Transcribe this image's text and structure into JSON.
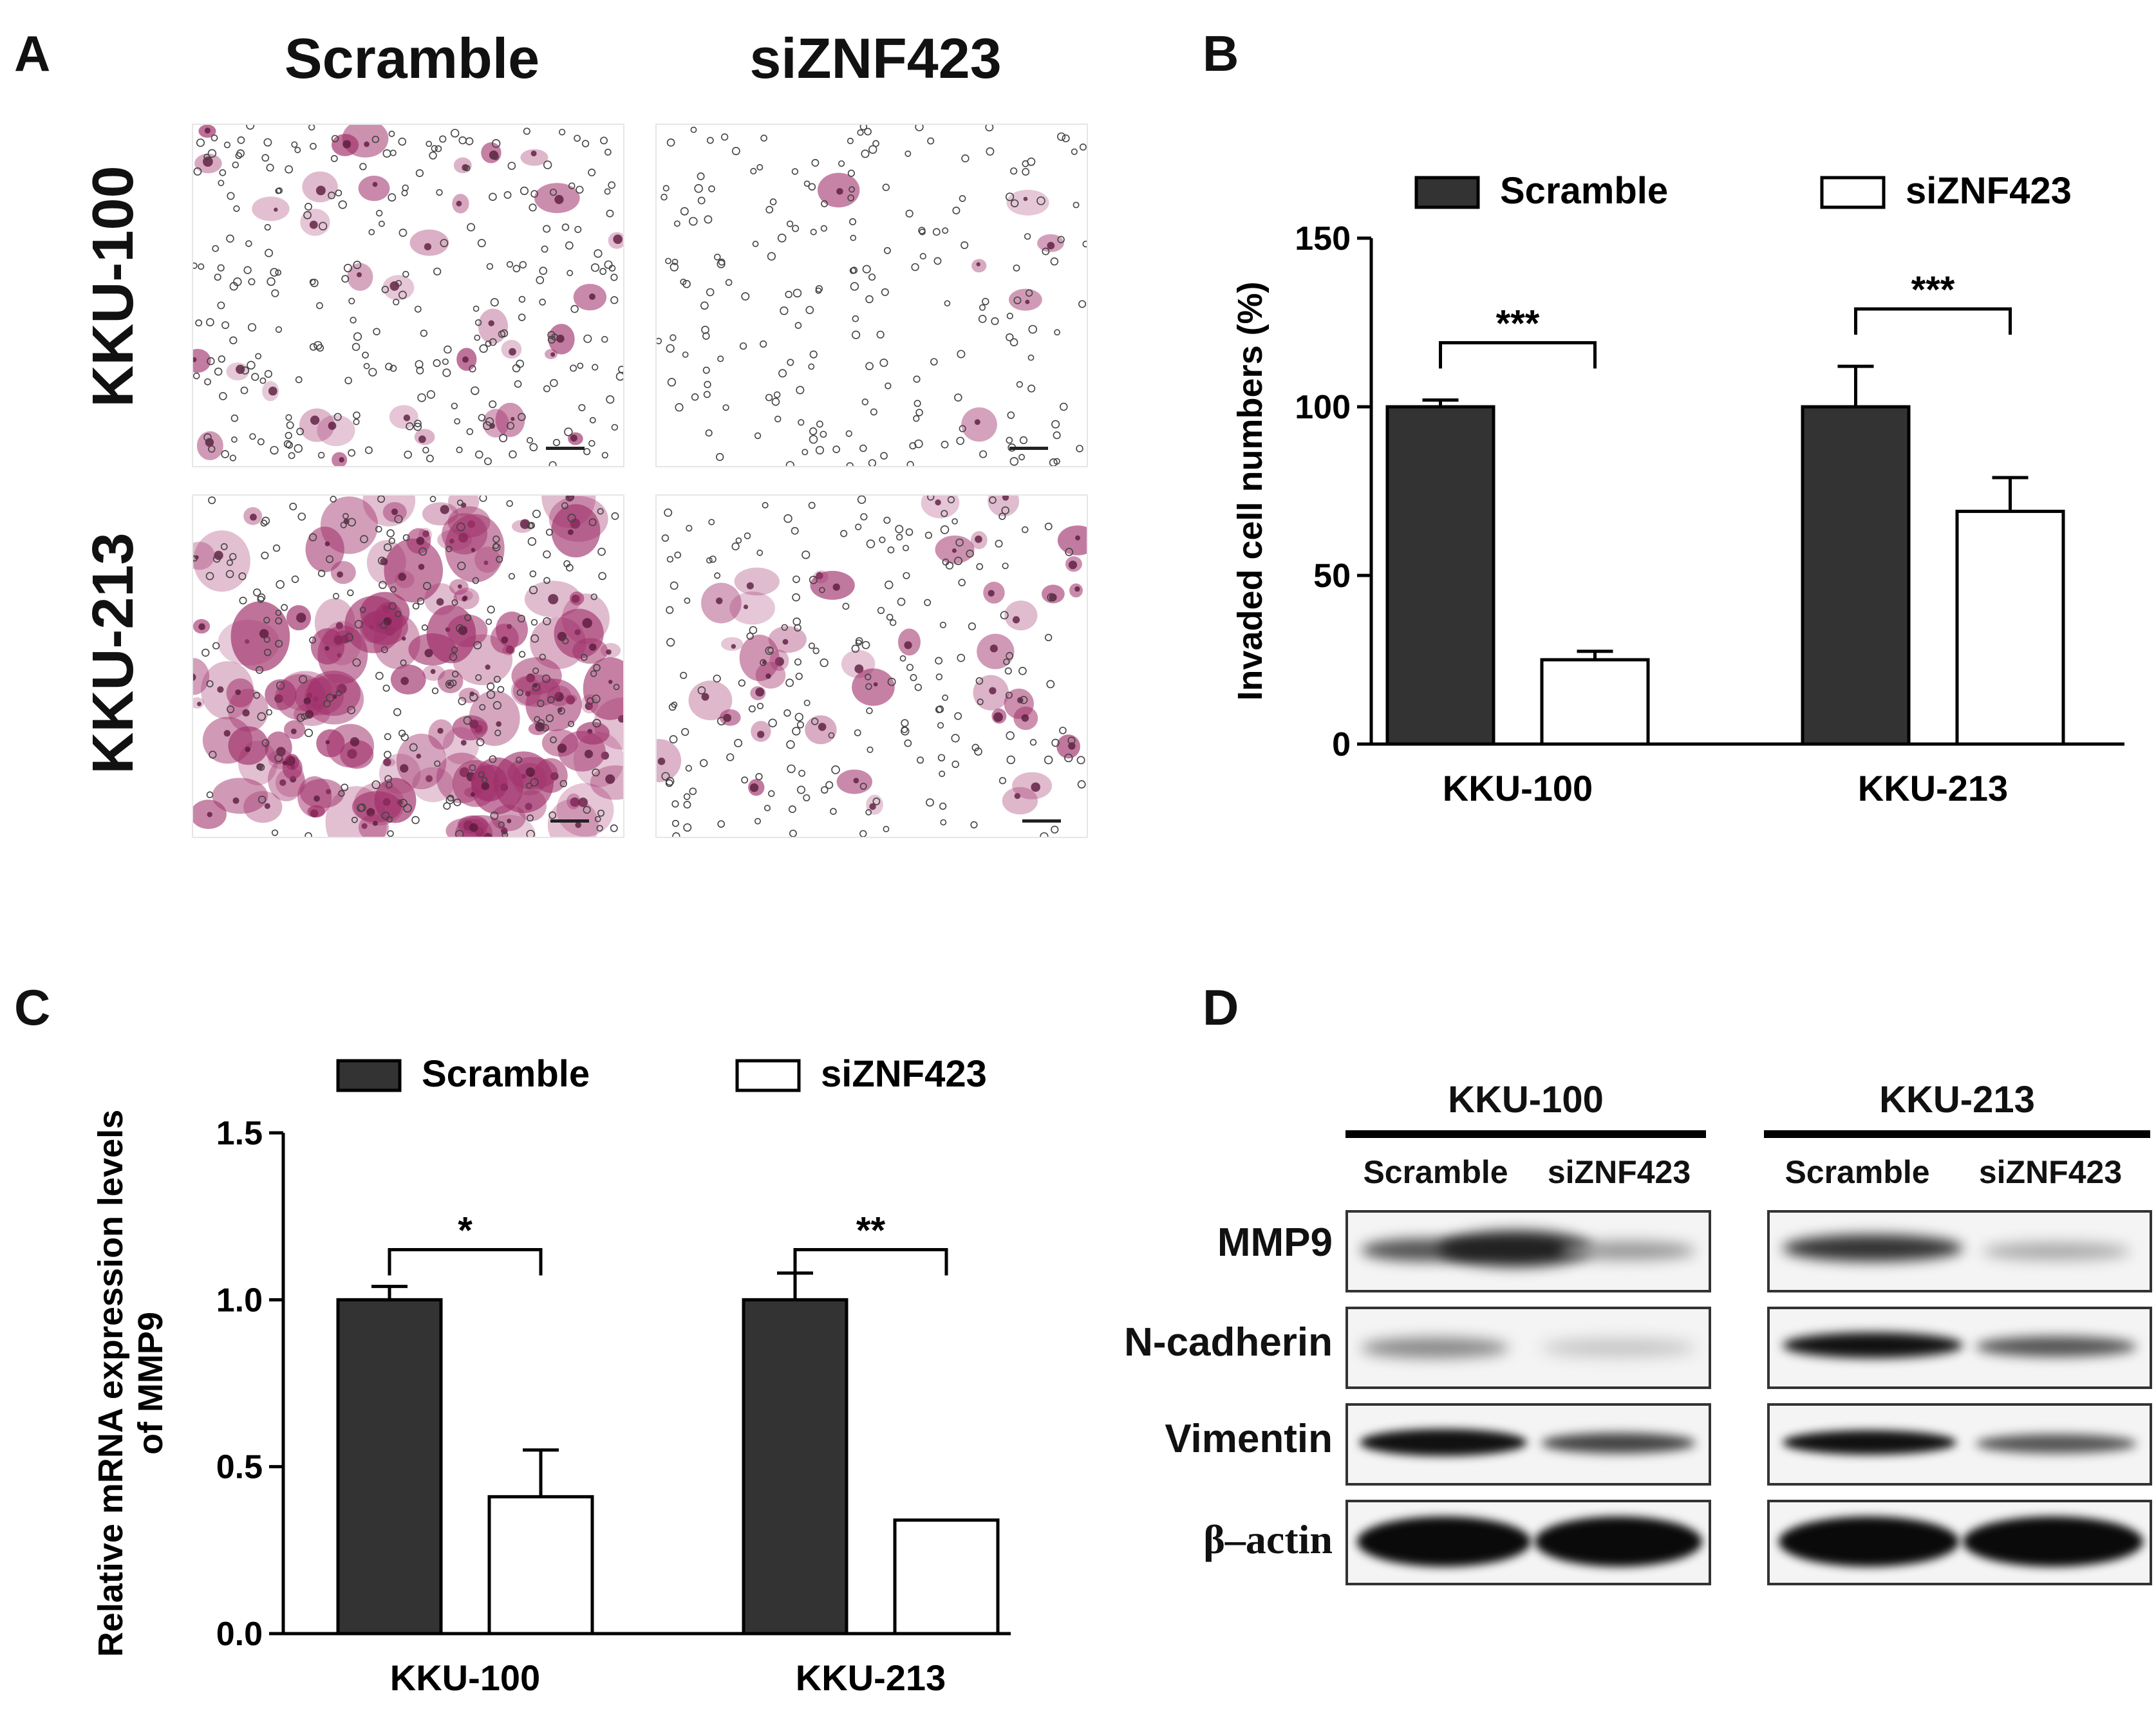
{
  "panel_a": {
    "letter": "A",
    "col_labels": [
      "Scramble",
      "siZNF423"
    ],
    "row_labels": [
      "KKU-100",
      "KKU-213"
    ]
  },
  "panel_b_letter": "B",
  "panel_c_letter": "C",
  "panel_d": {
    "letter": "D",
    "groups": [
      "KKU-100",
      "KKU-213"
    ],
    "lanes": [
      "Scramble",
      "siZNF423",
      "Scramble",
      "siZNF423"
    ],
    "proteins": [
      "MMP9",
      "N-cadherin",
      "Vimentin",
      "β–actin"
    ]
  },
  "colors": {
    "scramble_fill": "#333333",
    "siznf423_fill": "#ffffff",
    "stain": "#a0306a"
  },
  "chart_data": [
    {
      "type": "bar",
      "panel": "B",
      "categories": [
        "KKU-100",
        "KKU-213"
      ],
      "series": [
        {
          "name": "Scramble",
          "values": [
            100,
            100
          ],
          "errors": [
            2,
            12
          ]
        },
        {
          "name": "siZNF423",
          "values": [
            25,
            69
          ],
          "errors": [
            2.5,
            10
          ]
        }
      ],
      "ylabel": "Invaded cell numbers (%)",
      "ylim": [
        0,
        150
      ],
      "yticks": [
        "0",
        "50",
        "100",
        "150"
      ],
      "significance": [
        "***",
        "***"
      ],
      "legend": "top"
    },
    {
      "type": "bar",
      "panel": "C",
      "categories": [
        "KKU-100",
        "KKU-213"
      ],
      "series": [
        {
          "name": "Scramble",
          "values": [
            1.0,
            1.0
          ],
          "errors": [
            0.04,
            0.08
          ]
        },
        {
          "name": "siZNF423",
          "values": [
            0.41,
            0.34
          ],
          "errors": [
            0.14,
            0.0
          ]
        }
      ],
      "ylabel": "Relative mRNA expression levels of MMP9",
      "ylim": [
        0,
        1.5
      ],
      "yticks": [
        "0.0",
        "0.5",
        "1.0",
        "1.5"
      ],
      "significance": [
        "*",
        "**"
      ],
      "legend": "top"
    }
  ]
}
